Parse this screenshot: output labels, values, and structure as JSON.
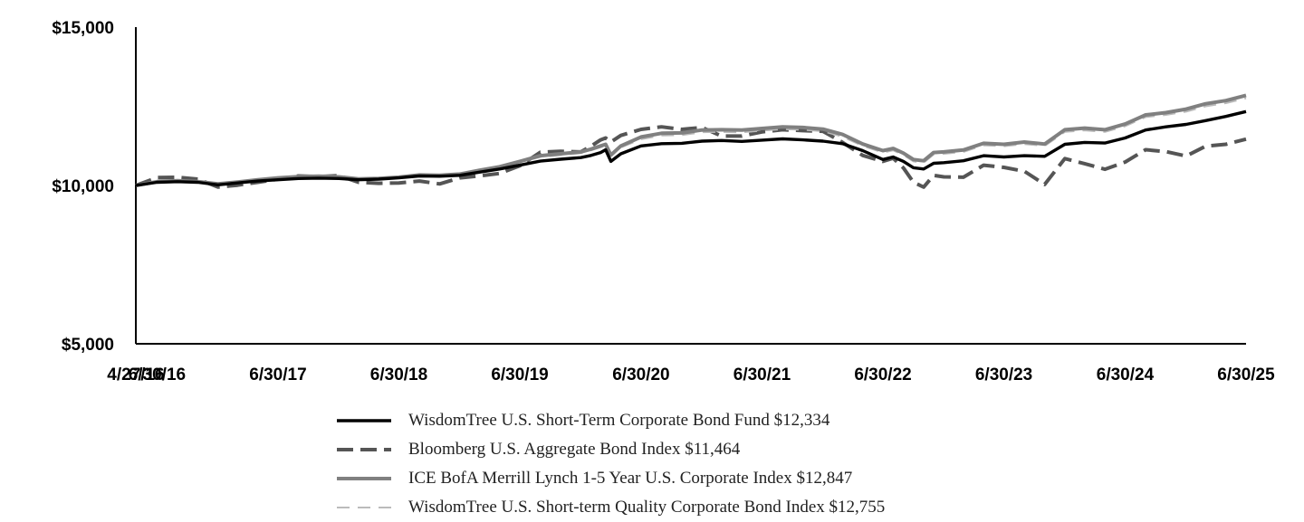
{
  "chart_data": {
    "type": "line",
    "title": "",
    "xlabel": "",
    "ylabel": "",
    "ylim": [
      5000,
      15000
    ],
    "yticks": [
      "$5,000",
      "$10,000",
      "$15,000"
    ],
    "ytick_values": [
      5000,
      10000,
      15000
    ],
    "xticks": [
      "4/27/16",
      "6/30/16",
      "6/30/17",
      "6/30/18",
      "6/30/19",
      "6/30/20",
      "6/30/21",
      "6/30/22",
      "6/30/23",
      "6/30/24",
      "6/30/25"
    ],
    "xtick_dates": [
      "2016-04-27",
      "2016-06-30",
      "2017-06-30",
      "2018-06-30",
      "2019-06-30",
      "2020-06-30",
      "2021-06-30",
      "2022-06-30",
      "2023-06-30",
      "2024-06-30",
      "2025-06-30"
    ],
    "grid": false,
    "legend_position": "bottom",
    "series": [
      {
        "name": "WisdomTree U.S. Short-Term Corporate Bond Fund $12,334",
        "color": "#000000",
        "style": "solid",
        "points": [
          [
            "2016-04-27",
            10000
          ],
          [
            "2016-06-30",
            10100
          ],
          [
            "2016-08-31",
            10120
          ],
          [
            "2016-10-31",
            10100
          ],
          [
            "2016-12-31",
            10020
          ],
          [
            "2017-02-28",
            10080
          ],
          [
            "2017-04-30",
            10140
          ],
          [
            "2017-06-30",
            10180
          ],
          [
            "2017-08-31",
            10220
          ],
          [
            "2017-10-31",
            10230
          ],
          [
            "2017-12-31",
            10220
          ],
          [
            "2018-02-28",
            10180
          ],
          [
            "2018-04-30",
            10200
          ],
          [
            "2018-06-30",
            10240
          ],
          [
            "2018-08-31",
            10300
          ],
          [
            "2018-10-31",
            10290
          ],
          [
            "2018-12-31",
            10320
          ],
          [
            "2019-02-28",
            10420
          ],
          [
            "2019-04-30",
            10520
          ],
          [
            "2019-06-30",
            10640
          ],
          [
            "2019-08-31",
            10770
          ],
          [
            "2019-10-31",
            10830
          ],
          [
            "2019-12-31",
            10880
          ],
          [
            "2020-01-31",
            10950
          ],
          [
            "2020-02-29",
            11040
          ],
          [
            "2020-03-15",
            11130
          ],
          [
            "2020-03-31",
            10760
          ],
          [
            "2020-04-30",
            11000
          ],
          [
            "2020-06-30",
            11250
          ],
          [
            "2020-08-31",
            11320
          ],
          [
            "2020-10-31",
            11330
          ],
          [
            "2020-12-31",
            11400
          ],
          [
            "2021-02-28",
            11420
          ],
          [
            "2021-04-30",
            11390
          ],
          [
            "2021-06-30",
            11430
          ],
          [
            "2021-08-31",
            11470
          ],
          [
            "2021-10-31",
            11440
          ],
          [
            "2021-12-31",
            11400
          ],
          [
            "2022-02-28",
            11320
          ],
          [
            "2022-04-30",
            11100
          ],
          [
            "2022-06-30",
            10820
          ],
          [
            "2022-07-31",
            10900
          ],
          [
            "2022-08-31",
            10760
          ],
          [
            "2022-09-30",
            10560
          ],
          [
            "2022-10-31",
            10520
          ],
          [
            "2022-11-30",
            10700
          ],
          [
            "2022-12-31",
            10720
          ],
          [
            "2023-02-28",
            10780
          ],
          [
            "2023-04-30",
            10940
          ],
          [
            "2023-06-30",
            10900
          ],
          [
            "2023-08-31",
            10940
          ],
          [
            "2023-10-31",
            10920
          ],
          [
            "2023-12-31",
            11300
          ],
          [
            "2024-02-29",
            11360
          ],
          [
            "2024-04-30",
            11340
          ],
          [
            "2024-06-30",
            11500
          ],
          [
            "2024-08-31",
            11750
          ],
          [
            "2024-10-31",
            11850
          ],
          [
            "2024-12-31",
            11930
          ],
          [
            "2025-02-28",
            12050
          ],
          [
            "2025-04-30",
            12180
          ],
          [
            "2025-06-30",
            12334
          ]
        ]
      },
      {
        "name": "Bloomberg U.S. Aggregate Bond Index $11,464",
        "color": "#555555",
        "style": "dashed",
        "points": [
          [
            "2016-04-27",
            10000
          ],
          [
            "2016-06-30",
            10250
          ],
          [
            "2016-08-31",
            10260
          ],
          [
            "2016-10-31",
            10200
          ],
          [
            "2016-12-31",
            9950
          ],
          [
            "2017-02-28",
            10010
          ],
          [
            "2017-04-30",
            10100
          ],
          [
            "2017-06-30",
            10200
          ],
          [
            "2017-08-31",
            10300
          ],
          [
            "2017-10-31",
            10280
          ],
          [
            "2017-12-31",
            10310
          ],
          [
            "2018-02-28",
            10100
          ],
          [
            "2018-04-30",
            10070
          ],
          [
            "2018-06-30",
            10080
          ],
          [
            "2018-08-31",
            10140
          ],
          [
            "2018-10-31",
            10050
          ],
          [
            "2018-12-31",
            10240
          ],
          [
            "2019-02-28",
            10300
          ],
          [
            "2019-04-30",
            10380
          ],
          [
            "2019-06-30",
            10620
          ],
          [
            "2019-08-31",
            11050
          ],
          [
            "2019-10-31",
            11080
          ],
          [
            "2019-12-31",
            11060
          ],
          [
            "2020-01-31",
            11240
          ],
          [
            "2020-02-29",
            11440
          ],
          [
            "2020-03-15",
            11500
          ],
          [
            "2020-03-31",
            11370
          ],
          [
            "2020-04-30",
            11580
          ],
          [
            "2020-06-30",
            11770
          ],
          [
            "2020-08-31",
            11850
          ],
          [
            "2020-10-31",
            11770
          ],
          [
            "2020-12-31",
            11830
          ],
          [
            "2021-02-28",
            11560
          ],
          [
            "2021-04-30",
            11560
          ],
          [
            "2021-06-30",
            11690
          ],
          [
            "2021-08-31",
            11760
          ],
          [
            "2021-10-31",
            11730
          ],
          [
            "2021-12-31",
            11710
          ],
          [
            "2022-02-28",
            11360
          ],
          [
            "2022-04-30",
            10950
          ],
          [
            "2022-06-30",
            10760
          ],
          [
            "2022-07-31",
            10860
          ],
          [
            "2022-08-31",
            10550
          ],
          [
            "2022-09-30",
            10100
          ],
          [
            "2022-10-31",
            9950
          ],
          [
            "2022-11-30",
            10320
          ],
          [
            "2022-12-31",
            10270
          ],
          [
            "2023-02-28",
            10260
          ],
          [
            "2023-04-30",
            10640
          ],
          [
            "2023-06-30",
            10570
          ],
          [
            "2023-08-31",
            10450
          ],
          [
            "2023-10-31",
            10030
          ],
          [
            "2023-12-31",
            10850
          ],
          [
            "2024-02-29",
            10690
          ],
          [
            "2024-04-30",
            10510
          ],
          [
            "2024-06-30",
            10740
          ],
          [
            "2024-08-31",
            11130
          ],
          [
            "2024-10-31",
            11070
          ],
          [
            "2024-12-31",
            10930
          ],
          [
            "2025-02-28",
            11240
          ],
          [
            "2025-04-30",
            11300
          ],
          [
            "2025-06-30",
            11464
          ]
        ]
      },
      {
        "name": "ICE BofA Merrill Lynch 1-5 Year U.S. Corporate Index $12,847",
        "color": "#808080",
        "style": "solid",
        "points": [
          [
            "2016-04-27",
            10000
          ],
          [
            "2016-06-30",
            10120
          ],
          [
            "2016-08-31",
            10150
          ],
          [
            "2016-10-31",
            10120
          ],
          [
            "2016-12-31",
            10050
          ],
          [
            "2017-02-28",
            10110
          ],
          [
            "2017-04-30",
            10180
          ],
          [
            "2017-06-30",
            10240
          ],
          [
            "2017-08-31",
            10280
          ],
          [
            "2017-10-31",
            10290
          ],
          [
            "2017-12-31",
            10270
          ],
          [
            "2018-02-28",
            10210
          ],
          [
            "2018-04-30",
            10220
          ],
          [
            "2018-06-30",
            10260
          ],
          [
            "2018-08-31",
            10330
          ],
          [
            "2018-10-31",
            10320
          ],
          [
            "2018-12-31",
            10360
          ],
          [
            "2019-02-28",
            10480
          ],
          [
            "2019-04-30",
            10590
          ],
          [
            "2019-06-30",
            10760
          ],
          [
            "2019-08-31",
            10940
          ],
          [
            "2019-10-31",
            11000
          ],
          [
            "2019-12-31",
            11060
          ],
          [
            "2020-01-31",
            11150
          ],
          [
            "2020-02-29",
            11250
          ],
          [
            "2020-03-15",
            11300
          ],
          [
            "2020-03-31",
            10960
          ],
          [
            "2020-04-30",
            11250
          ],
          [
            "2020-06-30",
            11530
          ],
          [
            "2020-08-31",
            11650
          ],
          [
            "2020-10-31",
            11660
          ],
          [
            "2020-12-31",
            11750
          ],
          [
            "2021-02-28",
            11760
          ],
          [
            "2021-04-30",
            11750
          ],
          [
            "2021-06-30",
            11800
          ],
          [
            "2021-08-31",
            11850
          ],
          [
            "2021-10-31",
            11830
          ],
          [
            "2021-12-31",
            11780
          ],
          [
            "2022-02-28",
            11610
          ],
          [
            "2022-04-30",
            11310
          ],
          [
            "2022-06-30",
            11100
          ],
          [
            "2022-07-31",
            11170
          ],
          [
            "2022-08-31",
            11020
          ],
          [
            "2022-09-30",
            10820
          ],
          [
            "2022-10-31",
            10780
          ],
          [
            "2022-11-30",
            11040
          ],
          [
            "2022-12-31",
            11060
          ],
          [
            "2023-02-28",
            11120
          ],
          [
            "2023-04-30",
            11330
          ],
          [
            "2023-06-30",
            11300
          ],
          [
            "2023-08-31",
            11370
          ],
          [
            "2023-10-31",
            11310
          ],
          [
            "2023-12-31",
            11760
          ],
          [
            "2024-02-29",
            11810
          ],
          [
            "2024-04-30",
            11760
          ],
          [
            "2024-06-30",
            11940
          ],
          [
            "2024-08-31",
            12230
          ],
          [
            "2024-10-31",
            12300
          ],
          [
            "2024-12-31",
            12410
          ],
          [
            "2025-02-28",
            12580
          ],
          [
            "2025-04-30",
            12680
          ],
          [
            "2025-06-30",
            12847
          ]
        ]
      },
      {
        "name": "WisdomTree U.S. Short-term Quality Corporate Bond Index $12,755",
        "color": "#bbbbbb",
        "style": "dashed",
        "points": [
          [
            "2016-04-27",
            10000
          ],
          [
            "2016-06-30",
            10110
          ],
          [
            "2016-08-31",
            10140
          ],
          [
            "2016-10-31",
            10110
          ],
          [
            "2016-12-31",
            10040
          ],
          [
            "2017-02-28",
            10100
          ],
          [
            "2017-04-30",
            10160
          ],
          [
            "2017-06-30",
            10220
          ],
          [
            "2017-08-31",
            10260
          ],
          [
            "2017-10-31",
            10270
          ],
          [
            "2017-12-31",
            10250
          ],
          [
            "2018-02-28",
            10190
          ],
          [
            "2018-04-30",
            10200
          ],
          [
            "2018-06-30",
            10240
          ],
          [
            "2018-08-31",
            10310
          ],
          [
            "2018-10-31",
            10300
          ],
          [
            "2018-12-31",
            10340
          ],
          [
            "2019-02-28",
            10460
          ],
          [
            "2019-04-30",
            10570
          ],
          [
            "2019-06-30",
            10730
          ],
          [
            "2019-08-31",
            10900
          ],
          [
            "2019-10-31",
            10960
          ],
          [
            "2019-12-31",
            11020
          ],
          [
            "2020-01-31",
            11110
          ],
          [
            "2020-02-29",
            11210
          ],
          [
            "2020-03-15",
            11260
          ],
          [
            "2020-03-31",
            10930
          ],
          [
            "2020-04-30",
            11200
          ],
          [
            "2020-06-30",
            11460
          ],
          [
            "2020-08-31",
            11580
          ],
          [
            "2020-10-31",
            11590
          ],
          [
            "2020-12-31",
            11680
          ],
          [
            "2021-02-28",
            11690
          ],
          [
            "2021-04-30",
            11680
          ],
          [
            "2021-06-30",
            11730
          ],
          [
            "2021-08-31",
            11780
          ],
          [
            "2021-10-31",
            11760
          ],
          [
            "2021-12-31",
            11710
          ],
          [
            "2022-02-28",
            11540
          ],
          [
            "2022-04-30",
            11250
          ],
          [
            "2022-06-30",
            11040
          ],
          [
            "2022-07-31",
            11110
          ],
          [
            "2022-08-31",
            10960
          ],
          [
            "2022-09-30",
            10760
          ],
          [
            "2022-10-31",
            10720
          ],
          [
            "2022-11-30",
            10980
          ],
          [
            "2022-12-31",
            11000
          ],
          [
            "2023-02-28",
            11060
          ],
          [
            "2023-04-30",
            11270
          ],
          [
            "2023-06-30",
            11240
          ],
          [
            "2023-08-31",
            11310
          ],
          [
            "2023-10-31",
            11250
          ],
          [
            "2023-12-31",
            11690
          ],
          [
            "2024-02-29",
            11740
          ],
          [
            "2024-04-30",
            11690
          ],
          [
            "2024-06-30",
            11870
          ],
          [
            "2024-08-31",
            12160
          ],
          [
            "2024-10-31",
            12230
          ],
          [
            "2024-12-31",
            12330
          ],
          [
            "2025-02-28",
            12500
          ],
          [
            "2025-04-30",
            12600
          ],
          [
            "2025-06-30",
            12755
          ]
        ]
      }
    ]
  }
}
